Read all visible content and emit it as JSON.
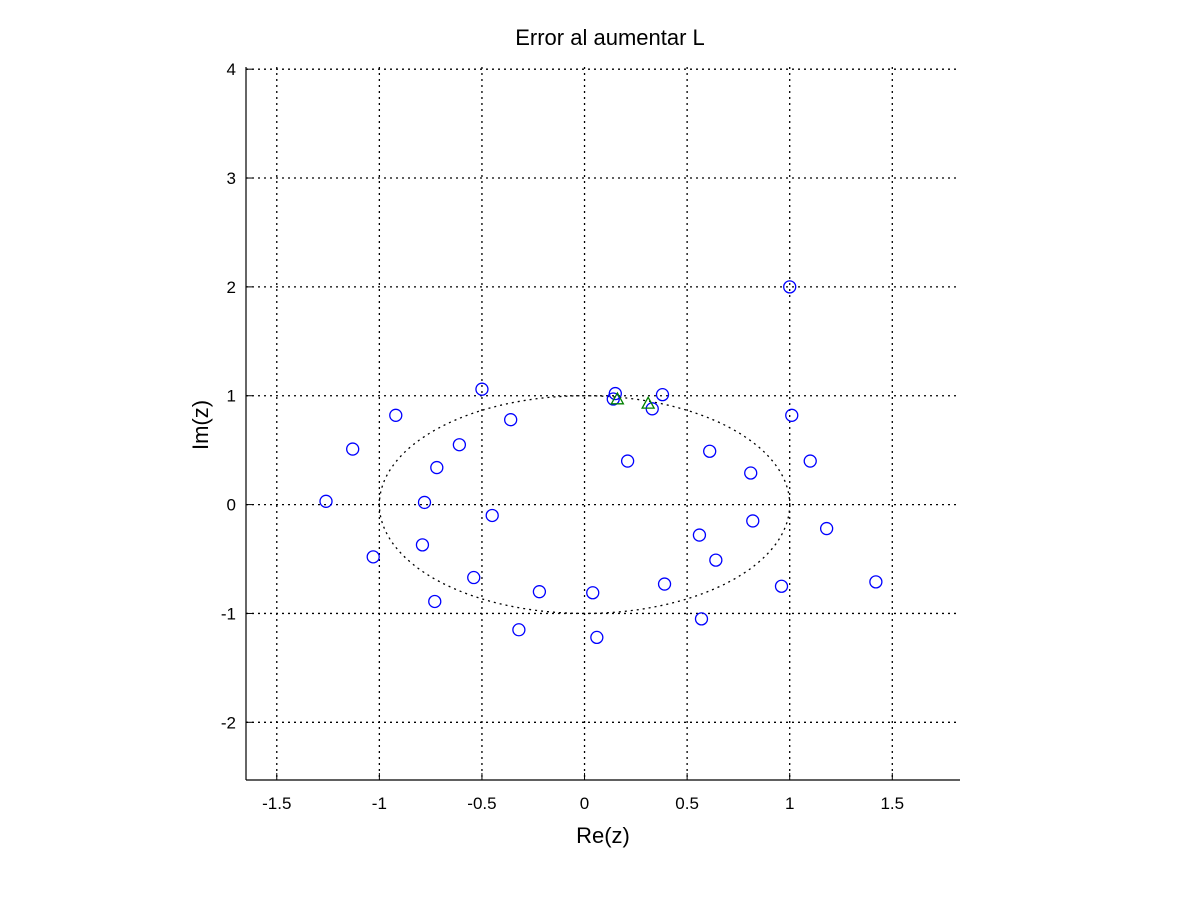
{
  "chart_data": {
    "type": "scatter",
    "title": "Error al aumentar L",
    "xlabel": "Re(z)",
    "ylabel": "Im(z)",
    "xlim": [
      -1.65,
      1.83
    ],
    "ylim": [
      -2.53,
      4.02
    ],
    "grid": true,
    "x_ticks": [
      -1.5,
      -1,
      -0.5,
      0,
      0.5,
      1,
      1.5
    ],
    "x_tick_labels": [
      "-1.5",
      "-1",
      "-0.5",
      "0",
      "0.5",
      "1",
      "1.5"
    ],
    "y_ticks": [
      -2,
      -1,
      0,
      1,
      2,
      3,
      4
    ],
    "y_tick_labels": [
      "-2",
      "-1",
      "0",
      "1",
      "2",
      "3",
      "4"
    ],
    "unit_circle": {
      "style": "dotted",
      "color": "#000000"
    },
    "series": [
      {
        "marker": "circle",
        "color": "#0000ff",
        "points": [
          [
            1.0,
            2.0
          ],
          [
            -0.5,
            1.06
          ],
          [
            0.15,
            1.02
          ],
          [
            0.38,
            1.01
          ],
          [
            -0.92,
            0.82
          ],
          [
            1.01,
            0.82
          ],
          [
            -0.36,
            0.78
          ],
          [
            0.33,
            0.88
          ],
          [
            0.14,
            0.97
          ],
          [
            -1.13,
            0.51
          ],
          [
            -0.61,
            0.55
          ],
          [
            0.61,
            0.49
          ],
          [
            0.21,
            0.4
          ],
          [
            -0.72,
            0.34
          ],
          [
            1.1,
            0.4
          ],
          [
            0.81,
            0.29
          ],
          [
            -1.26,
            0.03
          ],
          [
            -0.78,
            0.02
          ],
          [
            -0.45,
            -0.1
          ],
          [
            0.82,
            -0.15
          ],
          [
            1.18,
            -0.22
          ],
          [
            0.56,
            -0.28
          ],
          [
            -0.79,
            -0.37
          ],
          [
            -1.03,
            -0.48
          ],
          [
            0.64,
            -0.51
          ],
          [
            -0.54,
            -0.67
          ],
          [
            0.39,
            -0.73
          ],
          [
            0.96,
            -0.75
          ],
          [
            1.42,
            -0.71
          ],
          [
            -0.22,
            -0.8
          ],
          [
            0.04,
            -0.81
          ],
          [
            -0.73,
            -0.89
          ],
          [
            0.57,
            -1.05
          ],
          [
            -0.32,
            -1.15
          ],
          [
            0.06,
            -1.22
          ]
        ]
      },
      {
        "marker": "triangle",
        "color": "#008000",
        "points": [
          [
            0.16,
            0.97
          ],
          [
            0.31,
            0.93
          ]
        ]
      }
    ]
  }
}
